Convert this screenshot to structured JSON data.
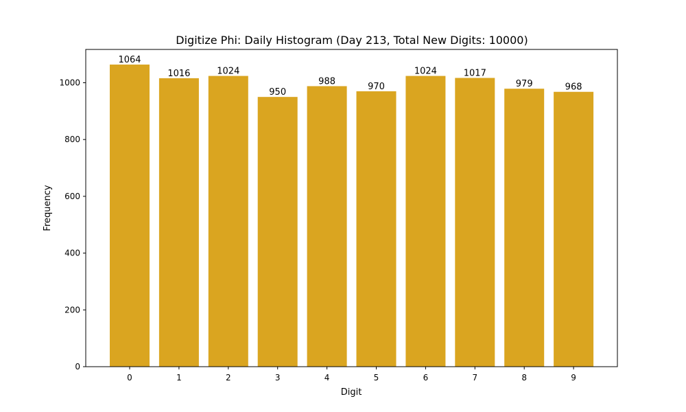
{
  "chart_data": {
    "type": "bar",
    "title": "Digitize Phi: Daily Histogram (Day 213, Total New Digits: 10000)",
    "xlabel": "Digit",
    "ylabel": "Frequency",
    "categories": [
      "0",
      "1",
      "2",
      "3",
      "4",
      "5",
      "6",
      "7",
      "8",
      "9"
    ],
    "values": [
      1064,
      1016,
      1024,
      950,
      988,
      970,
      1024,
      1017,
      979,
      968
    ],
    "data_labels": [
      "1064",
      "1016",
      "1024",
      "950",
      "988",
      "970",
      "1024",
      "1017",
      "979",
      "968"
    ],
    "ylim": [
      0,
      1117
    ],
    "yticks": [
      0,
      200,
      400,
      600,
      800,
      1000
    ],
    "ytick_labels": [
      "0",
      "200",
      "400",
      "600",
      "800",
      "1000"
    ],
    "grid": false,
    "legend": null,
    "bar_color": "#daa520"
  }
}
